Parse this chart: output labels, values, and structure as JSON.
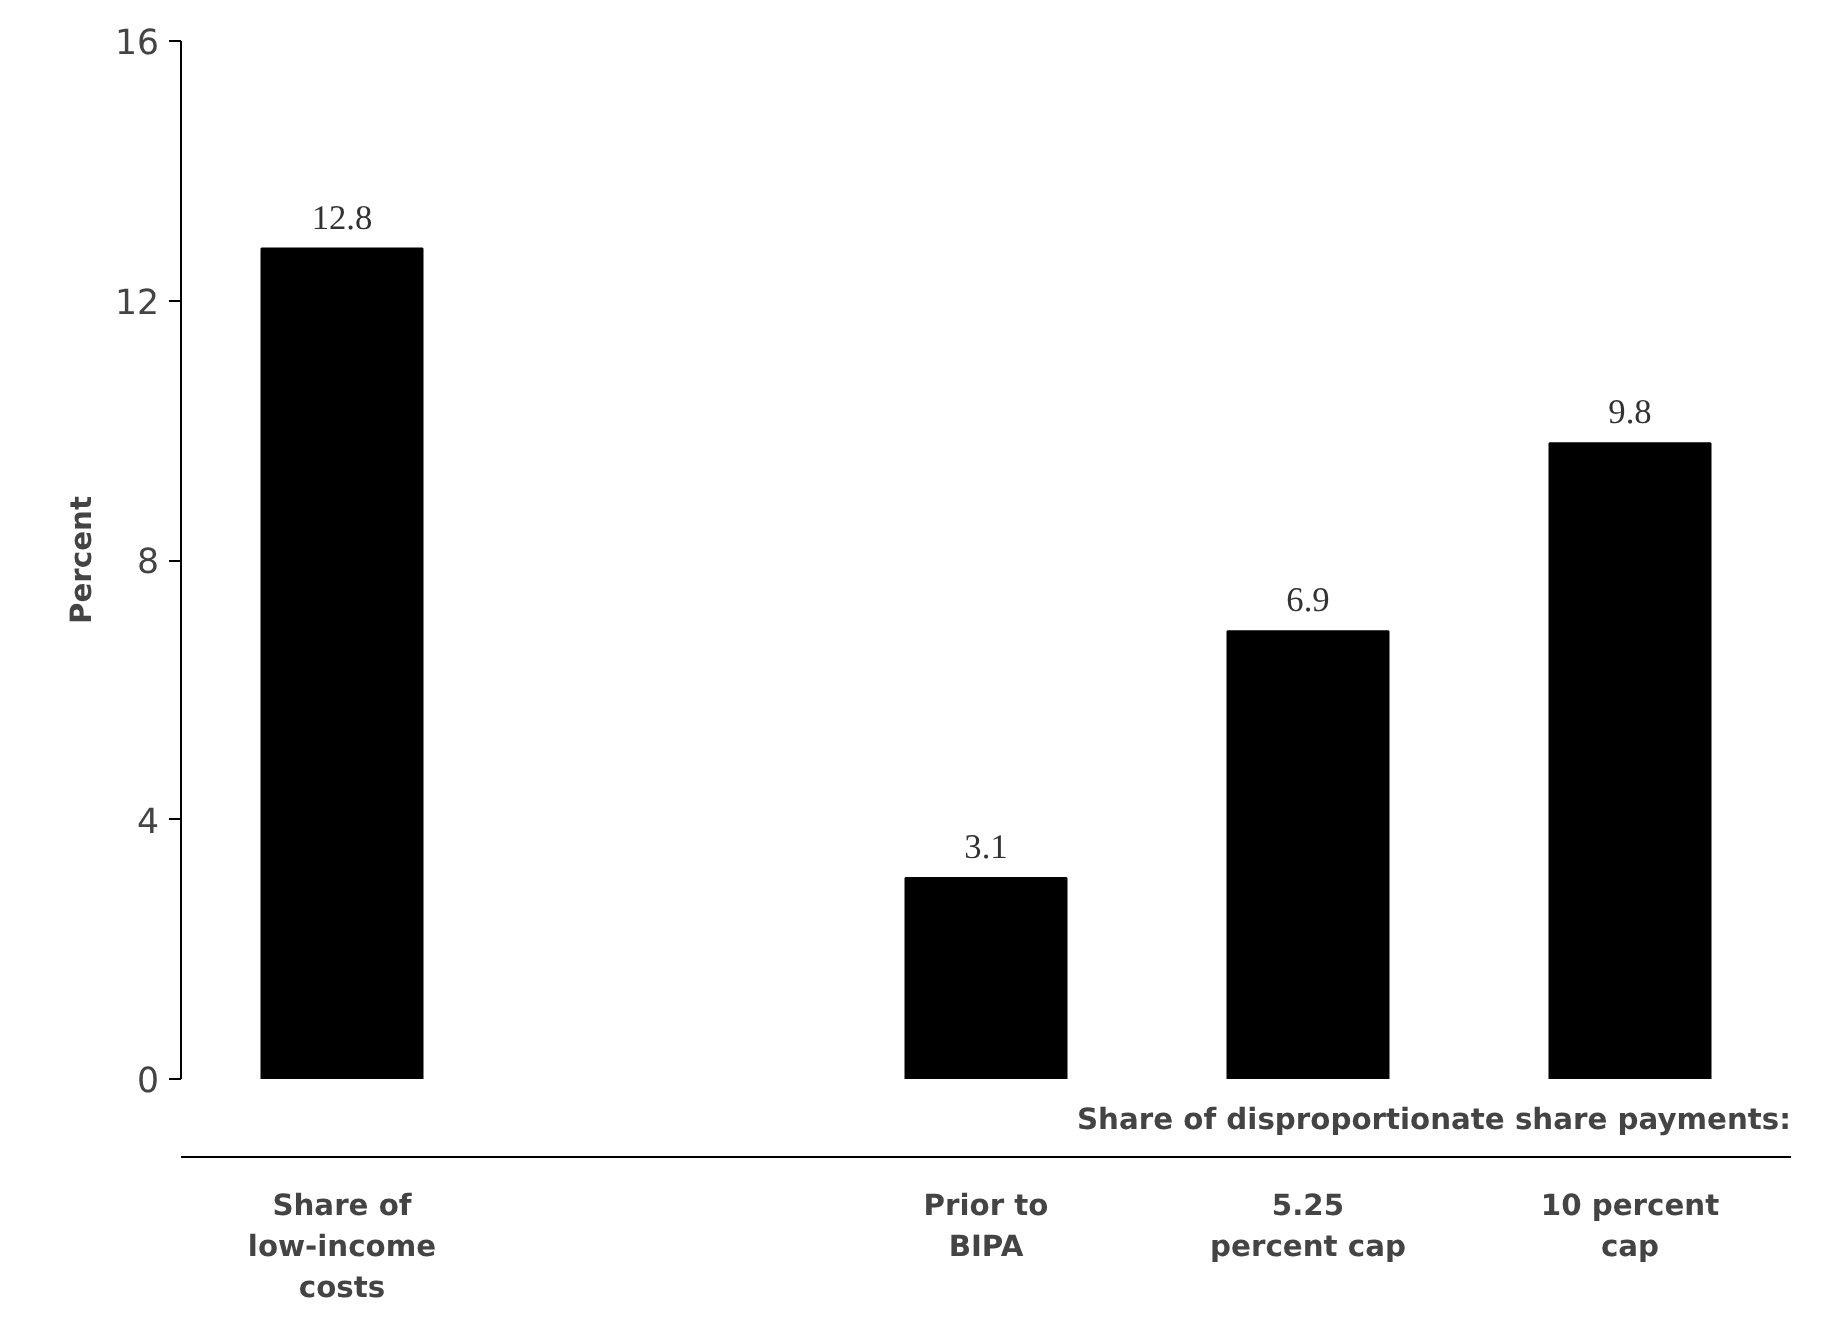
{
  "chart_data": {
    "type": "bar",
    "ylabel": "Percent",
    "categories": [
      "Share of low-income costs",
      null,
      "Prior to BIPA",
      "5.25 percent cap",
      "10 percent cap"
    ],
    "values": [
      12.8,
      null,
      3.1,
      6.9,
      9.8
    ],
    "color": "#000000",
    "data_labels": true,
    "ylim": [
      0,
      16
    ],
    "yticks": [
      0,
      4,
      8,
      12,
      16
    ],
    "grid": false,
    "annotations": [
      {
        "text": "Share of disproportionate share payments:"
      }
    ]
  }
}
